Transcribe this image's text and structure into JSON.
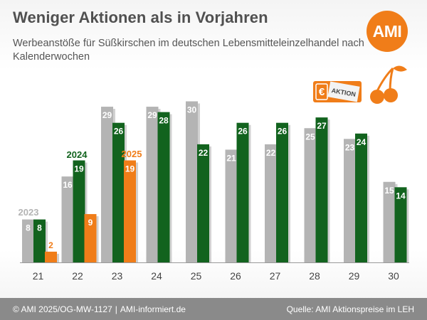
{
  "header": {
    "title": "Weniger Aktionen als in Vorjahren",
    "subtitle": "Werbeanstöße für Süßkirschen im deutschen Lebensmitteleinzelhandel nach Kalenderwochen",
    "logo_text": "AMI",
    "badge_symbol": "€",
    "badge_text": "AKTION"
  },
  "footer": {
    "left_1": "© AMI 2025/OG-MW-1127",
    "separator": "|",
    "left_2": "AMI-informiert.de",
    "right": "Quelle: AMI Aktionspreise im LEH"
  },
  "colors": {
    "s2023": "#b4b4b4",
    "s2024": "#12631e",
    "s2025": "#f07d19",
    "logo": "#f07d19",
    "footer": "#8a8a8a"
  },
  "icons": [
    "aktion-ticket-icon",
    "cherries-icon"
  ],
  "chart_data": {
    "type": "bar",
    "categories": [
      "21",
      "22",
      "23",
      "24",
      "25",
      "26",
      "27",
      "28",
      "29",
      "30"
    ],
    "series": [
      {
        "name": "2023",
        "values": [
          8,
          16,
          29,
          29,
          30,
          21,
          22,
          25,
          23,
          15
        ]
      },
      {
        "name": "2024",
        "values": [
          8,
          19,
          26,
          28,
          22,
          26,
          26,
          27,
          24,
          14
        ]
      },
      {
        "name": "2025",
        "values": [
          2,
          9,
          19,
          null,
          null,
          null,
          null,
          null,
          null,
          null
        ]
      }
    ],
    "ylim": [
      0,
      32
    ],
    "grid": false,
    "legend": "inline-labels"
  }
}
